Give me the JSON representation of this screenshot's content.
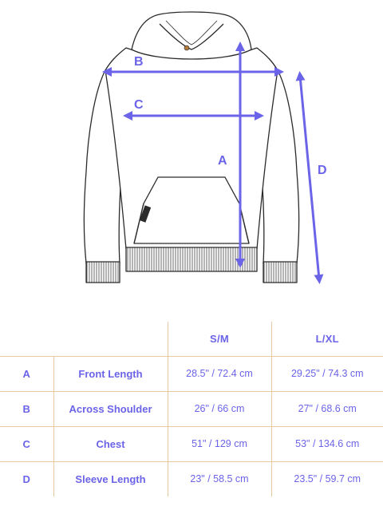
{
  "dimension_labels": {
    "a": "A",
    "b": "B",
    "c": "C",
    "d": "D"
  },
  "table": {
    "headers": [
      "S/M",
      "L/XL"
    ],
    "rows": [
      {
        "letter": "A",
        "measurement": "Front Length",
        "sm": "28.5\" / 72.4 cm",
        "lxl": "29.25\" / 74.3 cm"
      },
      {
        "letter": "B",
        "measurement": "Across Shoulder",
        "sm": "26\" / 66 cm",
        "lxl": "27\" / 68.6 cm"
      },
      {
        "letter": "C",
        "measurement": "Chest",
        "sm": "51\" / 129 cm",
        "lxl": "53\" / 134.6 cm"
      },
      {
        "letter": "D",
        "measurement": "Sleeve Length",
        "sm": "23\" / 58.5 cm",
        "lxl": "23.5\" / 59.7 cm"
      }
    ]
  },
  "colors": {
    "accent": "#6b63e8",
    "divider": "#e8c9a3",
    "outline": "#2b2b2b"
  }
}
